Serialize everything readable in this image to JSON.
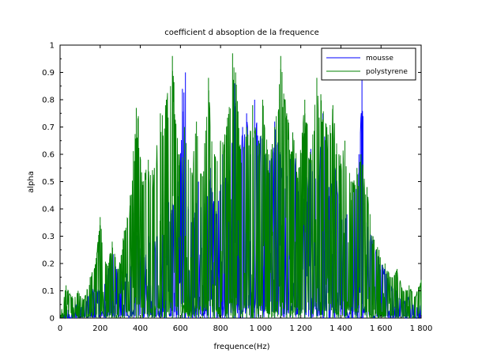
{
  "chart_data": {
    "type": "line",
    "title": "coefficient d absoption de la frequence",
    "xlabel": "frequence(Hz)",
    "ylabel": "alpha",
    "xlim": [
      0,
      1800
    ],
    "ylim": [
      0,
      1
    ],
    "xticks": [
      0,
      200,
      400,
      600,
      800,
      1000,
      1200,
      1400,
      1600,
      1800
    ],
    "xtick_labels": [
      "0",
      "200",
      "400",
      "600",
      "800",
      "1 000",
      "1 200",
      "1 400",
      "1 600",
      "1 800"
    ],
    "yticks": [
      0,
      0.1,
      0.2,
      0.3,
      0.4,
      0.5,
      0.6,
      0.7,
      0.8,
      0.9,
      1
    ],
    "ytick_labels": [
      "0",
      "0.1",
      "0.2",
      "0.3",
      "0.4",
      "0.5",
      "0.6",
      "0.7",
      "0.8",
      "0.9",
      "1"
    ],
    "grid": false,
    "legend_position": "top-right",
    "series": [
      {
        "name": "mousse",
        "color": "#0000ff",
        "x": [
          0,
          40,
          80,
          110,
          140,
          170,
          200,
          230,
          260,
          290,
          320,
          350,
          380,
          410,
          440,
          470,
          500,
          530,
          560,
          590,
          610,
          625,
          640,
          660,
          690,
          720,
          750,
          780,
          810,
          840,
          870,
          890,
          910,
          930,
          950,
          970,
          990,
          1010,
          1040,
          1070,
          1100,
          1130,
          1160,
          1190,
          1220,
          1250,
          1280,
          1310,
          1340,
          1370,
          1400,
          1430,
          1460,
          1490,
          1505,
          1510,
          1530,
          1560,
          1590,
          1620,
          1650,
          1680,
          1710,
          1740,
          1770,
          1800
        ],
        "y": [
          0,
          0.03,
          0.05,
          0.04,
          0.08,
          0.12,
          0.1,
          0.15,
          0.25,
          0.18,
          0.14,
          0.2,
          0.35,
          0.22,
          0.3,
          0.28,
          0.38,
          0.45,
          0.42,
          0.5,
          0.84,
          0.9,
          0.4,
          0.36,
          0.5,
          0.42,
          0.55,
          0.38,
          0.6,
          0.5,
          0.86,
          0.62,
          0.7,
          0.75,
          0.6,
          0.8,
          0.65,
          0.7,
          0.55,
          0.72,
          0.6,
          0.52,
          0.68,
          0.5,
          0.45,
          0.62,
          0.5,
          0.75,
          0.48,
          0.55,
          0.42,
          0.38,
          0.46,
          0.6,
          0.92,
          0.74,
          0.35,
          0.3,
          0.22,
          0.18,
          0.12,
          0.1,
          0.06,
          0.08,
          0.04,
          0.05
        ]
      },
      {
        "name": "polystyrene",
        "color": "#008000",
        "x": [
          0,
          30,
          60,
          90,
          120,
          150,
          180,
          200,
          230,
          260,
          290,
          320,
          350,
          380,
          390,
          410,
          440,
          470,
          500,
          530,
          560,
          590,
          620,
          650,
          680,
          710,
          740,
          770,
          800,
          830,
          860,
          875,
          900,
          930,
          960,
          990,
          1010,
          1040,
          1070,
          1100,
          1130,
          1160,
          1190,
          1220,
          1250,
          1280,
          1300,
          1330,
          1360,
          1390,
          1420,
          1450,
          1480,
          1500,
          1530,
          1560,
          1590,
          1620,
          1650,
          1680,
          1710,
          1740,
          1770,
          1800
        ],
        "y": [
          0,
          0.12,
          0.08,
          0.1,
          0.07,
          0.15,
          0.22,
          0.37,
          0.2,
          0.28,
          0.18,
          0.32,
          0.45,
          0.77,
          0.74,
          0.5,
          0.58,
          0.55,
          0.75,
          0.8,
          0.96,
          0.6,
          0.7,
          0.55,
          0.72,
          0.52,
          0.88,
          0.6,
          0.65,
          0.7,
          0.97,
          0.9,
          0.62,
          0.7,
          0.78,
          0.65,
          0.8,
          0.6,
          0.7,
          0.96,
          0.75,
          0.68,
          0.55,
          0.8,
          0.6,
          0.88,
          0.82,
          0.7,
          0.78,
          0.6,
          0.65,
          0.5,
          0.55,
          0.6,
          0.48,
          0.3,
          0.25,
          0.2,
          0.15,
          0.18,
          0.1,
          0.12,
          0.08,
          0.14
        ]
      }
    ]
  }
}
